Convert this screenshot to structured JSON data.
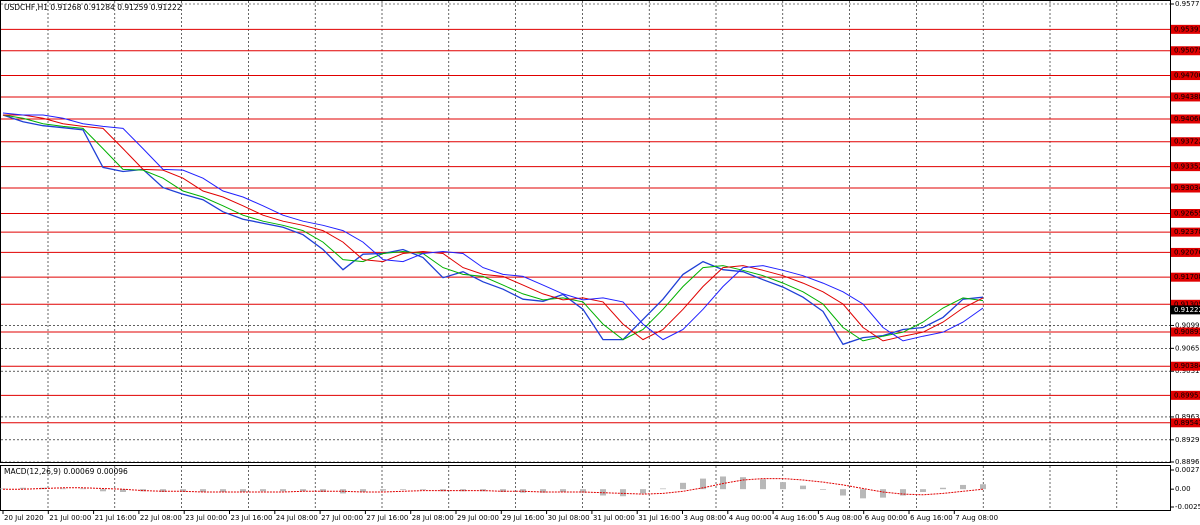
{
  "chart_data": [
    {
      "type": "line",
      "title": "USDCHF,H1  0.91268 0.91284 0.91259 0.91222",
      "ylim": [
        0.8896,
        0.9577
      ],
      "yticks": [
        {
          "value": 0.9577,
          "label": "0.95770"
        },
        {
          "value": 0.9099,
          "label": "0.90990"
        },
        {
          "value": 0.9065,
          "label": "0.90650"
        },
        {
          "value": 0.9031,
          "label": "0.90310"
        },
        {
          "value": 0.8963,
          "label": "0.89630"
        },
        {
          "value": 0.8929,
          "label": "0.89290"
        },
        {
          "value": 0.8896,
          "label": "0.88960"
        }
      ],
      "grid": true,
      "series": [
        {
          "color": "#1f3fd6",
          "values": [
            0.9412,
            0.9402,
            0.9396,
            0.9393,
            0.939,
            0.9334,
            0.9328,
            0.9331,
            0.9304,
            0.9294,
            0.9286,
            0.9268,
            0.9257,
            0.9251,
            0.9245,
            0.9234,
            0.9212,
            0.9182,
            0.9205,
            0.9206,
            0.9212,
            0.92,
            0.917,
            0.9179,
            0.9164,
            0.9153,
            0.9138,
            0.9135,
            0.9145,
            0.9123,
            0.9078,
            0.9078,
            0.9108,
            0.9138,
            0.9175,
            0.9194,
            0.9182,
            0.9179,
            0.9167,
            0.9156,
            0.9141,
            0.912,
            0.9071,
            0.9081,
            0.9084,
            0.9093,
            0.9096,
            0.9111,
            0.9138,
            0.9141
          ]
        },
        {
          "color": "#00b000",
          "values": [
            0.9412,
            0.9407,
            0.9399,
            0.9395,
            0.9392,
            0.9362,
            0.9331,
            0.933,
            0.9318,
            0.9299,
            0.929,
            0.9277,
            0.9263,
            0.9254,
            0.9248,
            0.924,
            0.9223,
            0.9197,
            0.9194,
            0.9206,
            0.9209,
            0.9206,
            0.9185,
            0.9175,
            0.9172,
            0.9159,
            0.9146,
            0.9137,
            0.914,
            0.9134,
            0.9101,
            0.9078,
            0.9093,
            0.9123,
            0.9157,
            0.9185,
            0.9188,
            0.9181,
            0.9173,
            0.9162,
            0.9149,
            0.9131,
            0.9096,
            0.9076,
            0.9083,
            0.9089,
            0.9104,
            0.9125,
            0.914,
            0.9136
          ]
        },
        {
          "color": "#e00000",
          "values": [
            0.9412,
            0.9412,
            0.9407,
            0.9399,
            0.9395,
            0.9392,
            0.9362,
            0.9331,
            0.933,
            0.9318,
            0.9299,
            0.929,
            0.9277,
            0.9263,
            0.9254,
            0.9248,
            0.924,
            0.9223,
            0.9197,
            0.9194,
            0.9206,
            0.9209,
            0.9206,
            0.9185,
            0.9175,
            0.9172,
            0.9159,
            0.9146,
            0.9137,
            0.914,
            0.9134,
            0.9101,
            0.9078,
            0.9093,
            0.9123,
            0.9157,
            0.9185,
            0.9188,
            0.9181,
            0.9173,
            0.9162,
            0.9149,
            0.9131,
            0.9096,
            0.9076,
            0.9083,
            0.9089,
            0.9104,
            0.9125,
            0.914
          ]
        },
        {
          "color": "#2020ff",
          "values": [
            0.9415,
            0.9412,
            0.9412,
            0.9407,
            0.9399,
            0.9395,
            0.9392,
            0.9362,
            0.9331,
            0.933,
            0.9318,
            0.9299,
            0.929,
            0.9277,
            0.9263,
            0.9254,
            0.9248,
            0.924,
            0.9223,
            0.9197,
            0.9194,
            0.9206,
            0.9209,
            0.9206,
            0.9185,
            0.9175,
            0.9172,
            0.9159,
            0.9146,
            0.9137,
            0.914,
            0.9134,
            0.9101,
            0.9078,
            0.9093,
            0.9123,
            0.9157,
            0.9185,
            0.9188,
            0.9181,
            0.9173,
            0.9162,
            0.9149,
            0.9131,
            0.9096,
            0.9076,
            0.9083,
            0.9089,
            0.9104,
            0.9125
          ]
        }
      ],
      "levels": [
        0.95393,
        0.95075,
        0.94706,
        0.94388,
        {
          "value": 0.9406,
          "label": "0.94060"
        },
        0.93722,
        0.93352,
        0.93034,
        0.92655,
        0.92378,
        0.92076,
        0.91708,
        0.91305,
        0.90893,
        0.90384,
        0.89951,
        0.89543
      ],
      "level_color": "#e00000",
      "last_price": 0.91222,
      "time_labels": [
        "20 Jul 2020",
        "21 Jul 00:00",
        "21 Jul 16:00",
        "22 Jul 08:00",
        "23 Jul 00:00",
        "23 Jul 16:00",
        "24 Jul 08:00",
        "27 Jul 00:00",
        "27 Jul 16:00",
        "28 Jul 08:00",
        "29 Jul 00:00",
        "29 Jul 16:00",
        "30 Jul 08:00",
        "31 Jul 00:00",
        "31 Jul 16:00",
        "3 Aug 08:00",
        "4 Aug 00:00",
        "4 Aug 16:00",
        "5 Aug 08:00",
        "6 Aug 00:00",
        "6 Aug 16:00",
        "7 Aug 08:00"
      ]
    },
    {
      "type": "macd",
      "title": "MACD(12,26,9) 0.00069 0.00096",
      "ylim": [
        -0.00253,
        0.00272
      ],
      "yticks": [
        0.00272,
        {
          "value": 0,
          "label": "0.00"
        },
        -0.00253
      ],
      "series": [
        {
          "color": "#b8b8b8",
          "values": [
            0.0001,
            0.0002,
            0.0002,
            0.0001,
            0.0001,
            -0.0003,
            -0.0004,
            -0.0003,
            -0.0004,
            -0.0004,
            -0.0004,
            -0.0004,
            -0.0004,
            -0.0003,
            -0.0003,
            -0.0003,
            -0.0004,
            -0.0006,
            -0.0004,
            -0.0002,
            -0.0001,
            -0.0001,
            -0.0003,
            -0.0003,
            -0.0003,
            -0.0004,
            -0.0005,
            -0.0005,
            -0.0004,
            -0.0005,
            -0.0009,
            -0.001,
            -0.0006,
            0.0001,
            0.0009,
            0.0015,
            0.0018,
            0.0017,
            0.0014,
            0.001,
            0.0005,
            -0.0001,
            -0.0009,
            -0.0013,
            -0.0012,
            -0.0009,
            -0.0004,
            0.0002,
            0.0006,
            0.0007
          ]
        },
        {
          "color": "#e00000",
          "values": [
            0,
            0,
            0.0001,
            0.0002,
            0.0002,
            0.0001,
            0,
            -0.0002,
            -0.0003,
            -0.0003,
            -0.0004,
            -0.0004,
            -0.0004,
            -0.0004,
            -0.0004,
            -0.0003,
            -0.0003,
            -0.0003,
            -0.0004,
            -0.0004,
            -0.0003,
            -0.0002,
            -0.0002,
            -0.0002,
            -0.0002,
            -0.0003,
            -0.0003,
            -0.0004,
            -0.0004,
            -0.0004,
            -0.0005,
            -0.0006,
            -0.0007,
            -0.0006,
            -0.0003,
            0.0002,
            0.0008,
            0.0013,
            0.0015,
            0.0015,
            0.0013,
            0.001,
            0.0006,
            0.0001,
            -0.0004,
            -0.0007,
            -0.0008,
            -0.0006,
            -0.0003,
            0
          ]
        }
      ]
    }
  ]
}
